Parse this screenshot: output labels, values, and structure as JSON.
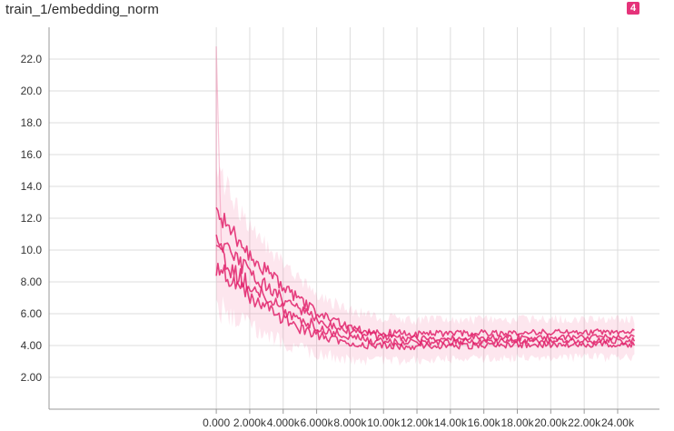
{
  "card": {
    "title": "train_1/embedding_norm",
    "badge": "4"
  },
  "colors": {
    "series": "#ec407a",
    "series_dark": "#e0206a",
    "grid": "#dddddd",
    "axis": "#999999"
  },
  "chart_data": {
    "type": "line",
    "title": "train_1/embedding_norm",
    "xlabel": "",
    "ylabel": "",
    "xlim": [
      -10000,
      26500
    ],
    "ylim": [
      0,
      24
    ],
    "x_ticks": [
      0,
      2000,
      4000,
      6000,
      8000,
      10000,
      12000,
      14000,
      16000,
      18000,
      20000,
      22000,
      24000
    ],
    "x_tick_labels": [
      "0.000",
      "2.000k",
      "4.000k",
      "6.000k",
      "8.000k",
      "10.00k",
      "12.00k",
      "14.00k",
      "16.00k",
      "18.00k",
      "20.00k",
      "22.00k",
      "24.00k"
    ],
    "y_ticks": [
      2,
      4,
      6,
      8,
      10,
      12,
      14,
      16,
      18,
      20,
      22
    ],
    "y_tick_labels": [
      "2.00",
      "4.00",
      "6.00",
      "8.00",
      "10.0",
      "12.0",
      "14.0",
      "16.0",
      "18.0",
      "20.0",
      "22.0"
    ],
    "grid": true,
    "series": [
      {
        "x": [
          0,
          500,
          1000,
          2000,
          3000,
          4000,
          5000,
          6000,
          7000,
          8000,
          9000,
          10000,
          11000,
          12000,
          14000,
          16000,
          18000,
          20000,
          22000,
          24000,
          25000
        ],
        "values": [
          12.3,
          11.9,
          11.0,
          9.8,
          8.7,
          7.7,
          6.8,
          6.1,
          5.6,
          5.2,
          4.95,
          4.8,
          4.75,
          4.7,
          4.75,
          4.8,
          4.8,
          4.85,
          4.85,
          4.85,
          4.85
        ]
      },
      {
        "x": [
          0,
          500,
          1000,
          2000,
          3000,
          4000,
          5000,
          6000,
          7000,
          8000,
          9000,
          10000,
          11000,
          12000,
          14000,
          16000,
          18000,
          20000,
          22000,
          24000,
          25000
        ],
        "values": [
          10.5,
          10.1,
          9.5,
          8.6,
          7.7,
          6.9,
          6.2,
          5.6,
          5.2,
          4.9,
          4.65,
          4.5,
          4.45,
          4.4,
          4.45,
          4.5,
          4.5,
          4.5,
          4.5,
          4.55,
          4.55
        ]
      },
      {
        "x": [
          0,
          500,
          1000,
          2000,
          3000,
          4000,
          5000,
          6000,
          7000,
          8000,
          9000,
          10000,
          11000,
          12000,
          14000,
          16000,
          18000,
          20000,
          22000,
          24000,
          25000
        ],
        "values": [
          9.7,
          9.3,
          8.7,
          7.8,
          7.0,
          6.3,
          5.7,
          5.2,
          4.8,
          4.55,
          4.35,
          4.25,
          4.2,
          4.2,
          4.25,
          4.25,
          4.3,
          4.3,
          4.3,
          4.3,
          4.3
        ]
      },
      {
        "x": [
          0,
          500,
          1000,
          2000,
          3000,
          4000,
          5000,
          6000,
          7000,
          8000,
          9000,
          10000,
          11000,
          12000,
          14000,
          16000,
          18000,
          20000,
          22000,
          24000,
          25000
        ],
        "values": [
          8.9,
          8.5,
          8.0,
          7.1,
          6.3,
          5.6,
          5.1,
          4.7,
          4.4,
          4.2,
          4.05,
          4.0,
          3.95,
          3.95,
          4.0,
          4.0,
          4.05,
          4.05,
          4.05,
          4.05,
          4.05
        ]
      }
    ]
  }
}
